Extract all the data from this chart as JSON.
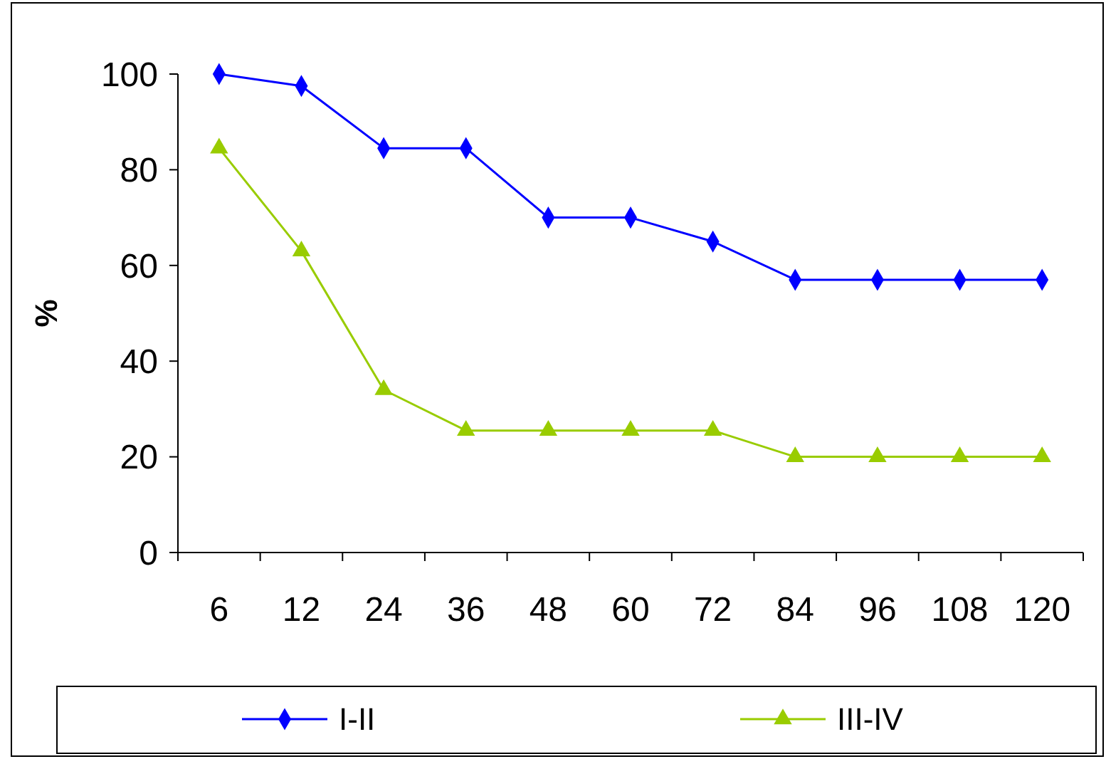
{
  "chart_data": {
    "type": "line",
    "ylabel": "%",
    "categories": [
      "6",
      "12",
      "24",
      "36",
      "48",
      "60",
      "72",
      "84",
      "96",
      "108",
      "120"
    ],
    "ylim": [
      0,
      100
    ],
    "yticks": [
      0,
      20,
      40,
      60,
      80,
      100
    ],
    "grid": false,
    "legend": "bottom",
    "line_style": "solid",
    "series": [
      {
        "name": "I-II",
        "color": "#0000ff",
        "marker": "diamond",
        "values": [
          100,
          97.5,
          84.5,
          84.5,
          70,
          70,
          65,
          57,
          57,
          57,
          57
        ]
      },
      {
        "name": "III-IV",
        "color": "#99cc00",
        "marker": "triangle",
        "values": [
          84.5,
          63,
          34,
          25.5,
          25.5,
          25.5,
          25.5,
          20,
          20,
          20,
          20
        ]
      }
    ]
  }
}
